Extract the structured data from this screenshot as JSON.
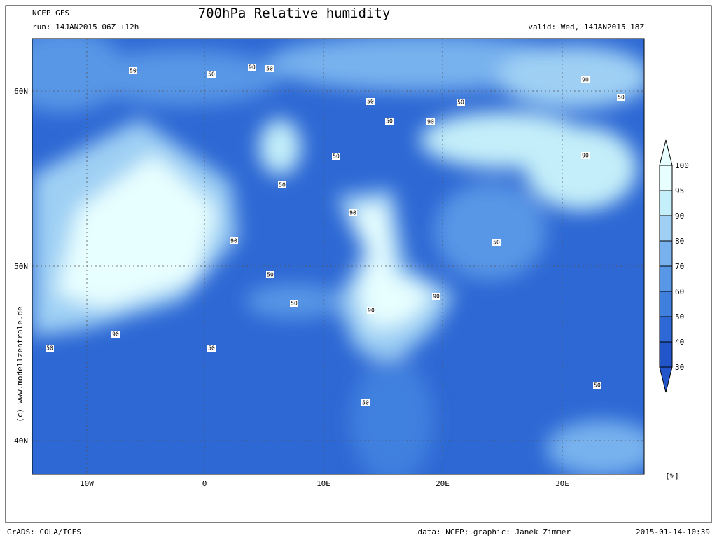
{
  "header": {
    "model": "NCEP GFS",
    "run": "run: 14JAN2015 06Z +12h",
    "title": "700hPa Relative humidity",
    "valid": "valid: Wed, 14JAN2015 18Z"
  },
  "map": {
    "lat_labels": [
      "60N",
      "50N",
      "40N"
    ],
    "lon_labels": [
      "10W",
      "0",
      "10E",
      "20E",
      "30E"
    ],
    "contour_labels": [
      "50",
      "50",
      "90",
      "50",
      "50",
      "50",
      "50",
      "90",
      "90",
      "50",
      "50",
      "50",
      "90",
      "90",
      "50",
      "90",
      "50",
      "50",
      "90",
      "90",
      "90",
      "50",
      "50",
      "50",
      "50"
    ]
  },
  "colorbar": {
    "labels": [
      "100",
      "95",
      "90",
      "80",
      "70",
      "60",
      "50",
      "40",
      "30"
    ],
    "unit": "[%]",
    "colors": [
      "#e8ffff",
      "#c4eef9",
      "#9fd0f4",
      "#78b2ee",
      "#5896e6",
      "#3f80de",
      "#2d68d4",
      "#2155c9"
    ]
  },
  "credit": "(c)  www.modellzentrale.de",
  "footer": {
    "left": "GrADS: COLA/IGES",
    "center": "data: NCEP; graphic: Janek Zimmer",
    "right": "2015-01-14-10:39"
  }
}
